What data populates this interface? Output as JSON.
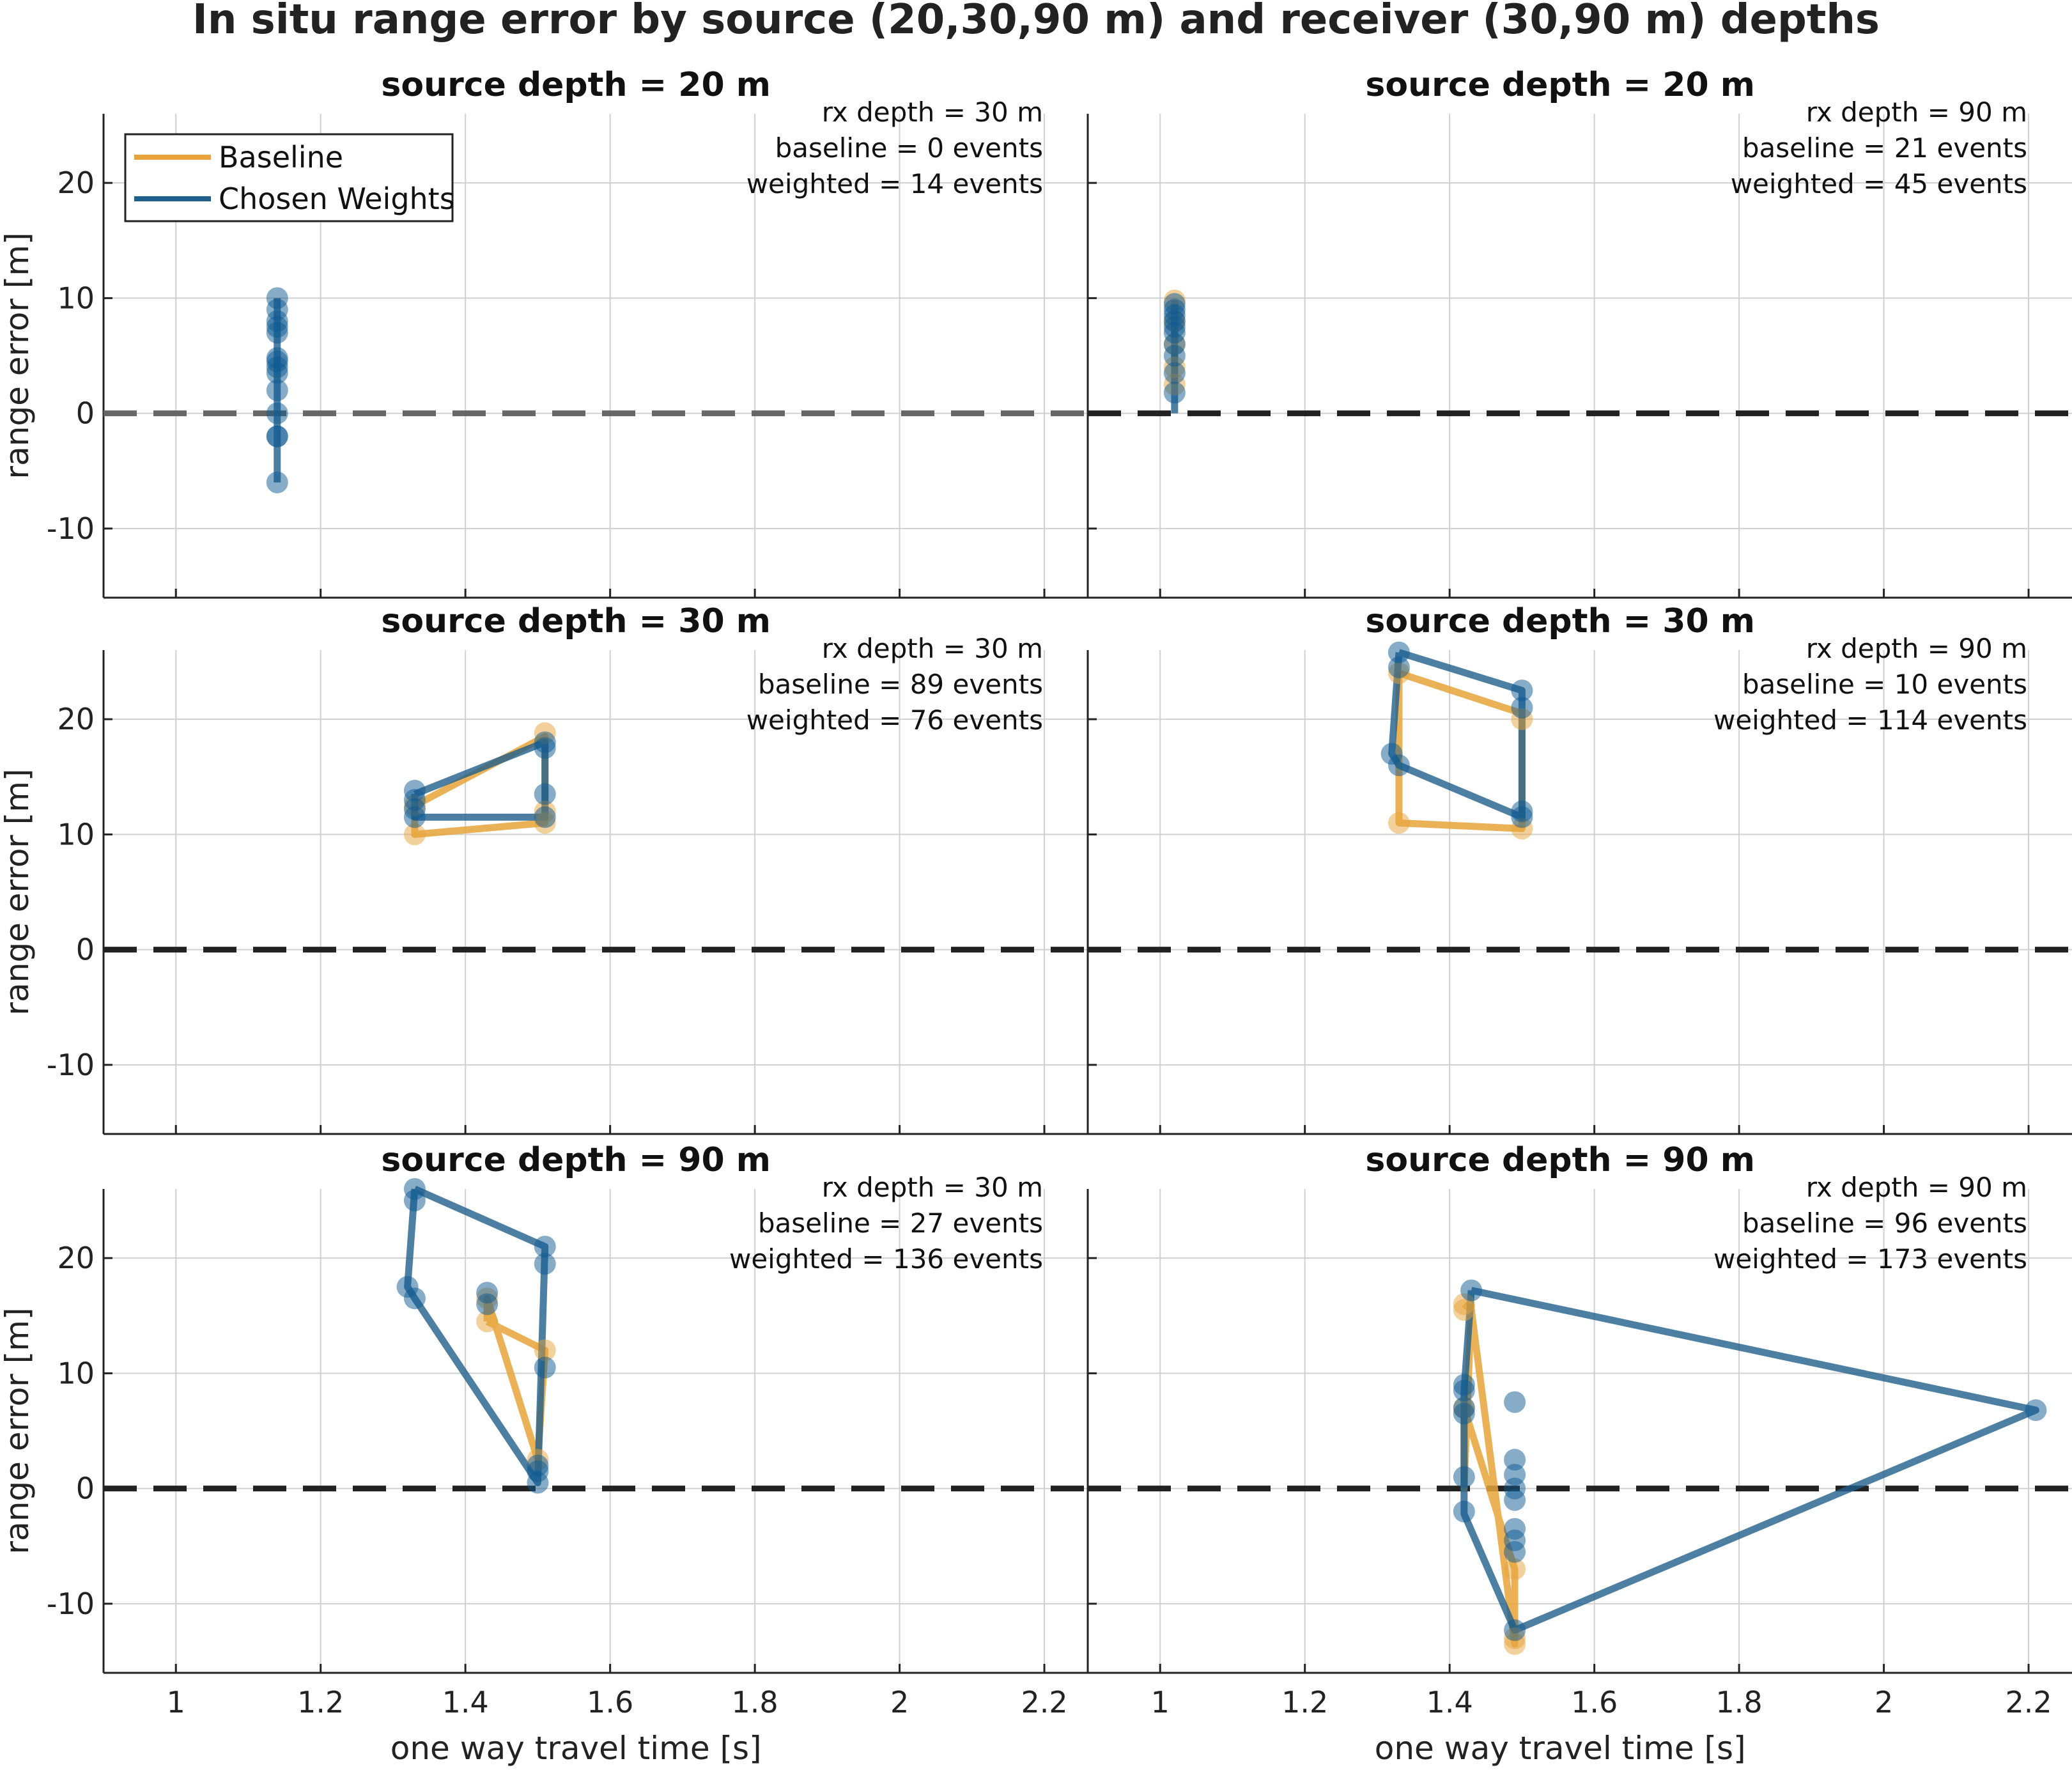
{
  "figure": {
    "title": "In situ range error by source (20,30,90 m) and receiver (30,90 m) depths"
  },
  "colors": {
    "baseline": "#E8A33A",
    "weighted": "#1F5F8B",
    "weighted_marker": "#0E5A92",
    "zero_line": "#222222",
    "zero_line_first": "#666666",
    "grid": "#D0D0D0"
  },
  "legend": {
    "baseline": "Baseline",
    "weighted": "Chosen Weights",
    "position": "top-left"
  },
  "chart_data": [
    {
      "type": "line",
      "title": "source depth = 20 m",
      "annotation": [
        "rx depth = 30 m",
        "baseline = 0 events",
        "weighted = 14 events"
      ],
      "xlabel": "",
      "ylabel": "range error [m]",
      "xlim": [
        0.9,
        2.26
      ],
      "ylim": [
        -16,
        26
      ],
      "xticks": [
        "1",
        "1.2",
        "1.4",
        "1.6",
        "1.8",
        "2",
        "2.2"
      ],
      "yticks": [
        "-10",
        "0",
        "10",
        "20"
      ],
      "series": [
        {
          "name": "Baseline",
          "x": [],
          "y": []
        },
        {
          "name": "Chosen Weights",
          "x": [
            1.14,
            1.14
          ],
          "y": [
            -6,
            10
          ]
        }
      ],
      "points": [
        {
          "name": "Baseline",
          "x": [],
          "y": []
        },
        {
          "name": "Chosen Weights",
          "x": [
            1.14,
            1.14,
            1.14,
            1.14,
            1.14,
            1.14,
            1.14,
            1.14,
            1.14,
            1.14,
            1.14,
            1.14,
            1.14,
            1.14
          ],
          "y": [
            10,
            9,
            7.5,
            7,
            4.8,
            4,
            3.5,
            2,
            0,
            -2,
            -2,
            -6,
            8,
            4.5
          ]
        }
      ]
    },
    {
      "type": "line",
      "title": "source depth = 20 m",
      "annotation": [
        "rx depth = 90 m",
        "baseline = 21 events",
        "weighted = 45 events"
      ],
      "xlabel": "",
      "ylabel": "",
      "xlim": [
        0.9,
        2.26
      ],
      "ylim": [
        -16,
        26
      ],
      "xticks": [
        "1",
        "1.2",
        "1.4",
        "1.6",
        "1.8",
        "2",
        "2.2"
      ],
      "yticks": [
        "-10",
        "0",
        "10",
        "20"
      ],
      "series": [
        {
          "name": "Baseline",
          "x": [
            1.02,
            1.02
          ],
          "y": [
            2.5,
            9.8
          ]
        },
        {
          "name": "Chosen Weights",
          "x": [
            1.02,
            1.02
          ],
          "y": [
            0,
            9.5
          ]
        }
      ],
      "points": [
        {
          "name": "Baseline",
          "x": [
            1.02,
            1.02,
            1.02,
            1.02,
            1.02
          ],
          "y": [
            9.8,
            8,
            6,
            4,
            2.5
          ]
        },
        {
          "name": "Chosen Weights",
          "x": [
            1.02,
            1.02,
            1.02,
            1.02,
            1.02,
            1.02,
            1.02,
            1.02,
            1.02,
            1.02
          ],
          "y": [
            9.5,
            9,
            8.5,
            8,
            7.5,
            7,
            6,
            5,
            3.5,
            1.8
          ]
        }
      ]
    },
    {
      "type": "line",
      "title": "source depth = 30 m",
      "annotation": [
        "rx depth = 30 m",
        "baseline = 89 events",
        "weighted = 76 events"
      ],
      "xlabel": "",
      "ylabel": "range error [m]",
      "xlim": [
        0.9,
        2.26
      ],
      "ylim": [
        -16,
        26
      ],
      "xticks": [
        "1",
        "1.2",
        "1.4",
        "1.6",
        "1.8",
        "2",
        "2.2"
      ],
      "yticks": [
        "-10",
        "0",
        "10",
        "20"
      ],
      "series": [
        {
          "name": "Baseline",
          "x": [
            1.33,
            1.51,
            1.51,
            1.33,
            1.33
          ],
          "y": [
            12.5,
            18.5,
            11,
            10,
            12.5
          ]
        },
        {
          "name": "Chosen Weights",
          "x": [
            1.33,
            1.51,
            1.51,
            1.33,
            1.33
          ],
          "y": [
            13.5,
            18,
            11.5,
            11.5,
            13.5
          ]
        }
      ],
      "points": [
        {
          "name": "Baseline",
          "x": [
            1.33,
            1.33,
            1.51,
            1.51,
            1.51
          ],
          "y": [
            10,
            12.5,
            18.8,
            11,
            12
          ]
        },
        {
          "name": "Chosen Weights",
          "x": [
            1.33,
            1.33,
            1.33,
            1.33,
            1.51,
            1.51,
            1.51,
            1.51
          ],
          "y": [
            13.8,
            13,
            12.2,
            11.5,
            18,
            17.5,
            13.5,
            11.5
          ]
        }
      ]
    },
    {
      "type": "line",
      "title": "source depth = 30 m",
      "annotation": [
        "rx depth = 90 m",
        "baseline = 10 events",
        "weighted = 114 events"
      ],
      "xlabel": "",
      "ylabel": "",
      "xlim": [
        0.9,
        2.26
      ],
      "ylim": [
        -16,
        26
      ],
      "xticks": [
        "1",
        "1.2",
        "1.4",
        "1.6",
        "1.8",
        "2",
        "2.2"
      ],
      "yticks": [
        "-10",
        "0",
        "10",
        "20"
      ],
      "series": [
        {
          "name": "Baseline",
          "x": [
            1.33,
            1.5,
            1.5,
            1.33,
            1.33
          ],
          "y": [
            24,
            20.5,
            10.5,
            11,
            24
          ]
        },
        {
          "name": "Chosen Weights",
          "x": [
            1.33,
            1.5,
            1.5,
            1.33,
            1.32,
            1.33
          ],
          "y": [
            25.8,
            22.5,
            11.5,
            16,
            17,
            25.8
          ]
        }
      ],
      "points": [
        {
          "name": "Baseline",
          "x": [
            1.33,
            1.5,
            1.5,
            1.33
          ],
          "y": [
            24,
            20,
            10.5,
            11
          ]
        },
        {
          "name": "Chosen Weights",
          "x": [
            1.33,
            1.33,
            1.5,
            1.5,
            1.5,
            1.5,
            1.32,
            1.33
          ],
          "y": [
            25.8,
            24.5,
            22.5,
            21,
            12,
            11.5,
            17,
            16
          ]
        }
      ]
    },
    {
      "type": "line",
      "title": "source depth = 90 m",
      "annotation": [
        "rx depth = 30 m",
        "baseline = 27 events",
        "weighted = 136 events"
      ],
      "xlabel": "one way travel time [s]",
      "ylabel": "range error [m]",
      "xlim": [
        0.9,
        2.26
      ],
      "ylim": [
        -16,
        26
      ],
      "xticks": [
        "1",
        "1.2",
        "1.4",
        "1.6",
        "1.8",
        "2",
        "2.2"
      ],
      "yticks": [
        "-10",
        "0",
        "10",
        "20"
      ],
      "series": [
        {
          "name": "Baseline",
          "x": [
            1.43,
            1.51,
            1.5,
            1.43,
            1.43
          ],
          "y": [
            14.5,
            12,
            2.5,
            16.5,
            14.5
          ]
        },
        {
          "name": "Chosen Weights",
          "x": [
            1.33,
            1.51,
            1.5,
            1.33,
            1.32,
            1.33
          ],
          "y": [
            26,
            21,
            0.5,
            16.5,
            17.5,
            26
          ]
        }
      ],
      "points": [
        {
          "name": "Baseline",
          "x": [
            1.43,
            1.43,
            1.51,
            1.5
          ],
          "y": [
            14.5,
            16.5,
            12,
            2.5
          ]
        },
        {
          "name": "Chosen Weights",
          "x": [
            1.33,
            1.33,
            1.51,
            1.51,
            1.5,
            1.5,
            1.5,
            1.32,
            1.33,
            1.43,
            1.43,
            1.51
          ],
          "y": [
            26,
            25,
            21,
            19.5,
            2,
            1.5,
            0.5,
            17.5,
            16.5,
            17,
            16,
            10.5
          ]
        }
      ]
    },
    {
      "type": "line",
      "title": "source depth = 90 m",
      "annotation": [
        "rx depth = 90 m",
        "baseline = 96 events",
        "weighted = 173 events"
      ],
      "xlabel": "one way travel time [s]",
      "ylabel": "",
      "xlim": [
        0.9,
        2.26
      ],
      "ylim": [
        -16,
        26
      ],
      "xticks": [
        "1",
        "1.2",
        "1.4",
        "1.6",
        "1.8",
        "2",
        "2.2"
      ],
      "yticks": [
        "-10",
        "0",
        "10",
        "20"
      ],
      "series": [
        {
          "name": "Baseline",
          "x": [
            1.42,
            1.43,
            1.49,
            1.49,
            1.42,
            1.42,
            1.43
          ],
          "y": [
            16,
            15.5,
            -13.5,
            -7,
            7,
            0,
            16
          ]
        },
        {
          "name": "Chosen Weights",
          "x": [
            1.43,
            2.21,
            1.49,
            1.42,
            1.42,
            1.43
          ],
          "y": [
            17.2,
            6.8,
            -12.3,
            -2.2,
            8.5,
            17.2
          ]
        }
      ],
      "points": [
        {
          "name": "Baseline",
          "x": [
            1.42,
            1.42,
            1.49,
            1.49,
            1.49,
            1.42
          ],
          "y": [
            16,
            15.5,
            -13.5,
            -13,
            -7,
            7
          ]
        },
        {
          "name": "Chosen Weights",
          "x": [
            1.43,
            1.42,
            1.42,
            1.42,
            1.42,
            1.42,
            1.42,
            1.49,
            1.49,
            1.49,
            1.49,
            1.49,
            1.49,
            1.49,
            1.49,
            1.49,
            2.21
          ],
          "y": [
            17.2,
            9,
            8.5,
            7,
            6.5,
            1,
            -2,
            2.5,
            1.2,
            0,
            -1,
            -3.5,
            -4.5,
            -5.5,
            7.5,
            -12.3,
            6.8
          ]
        }
      ]
    }
  ]
}
